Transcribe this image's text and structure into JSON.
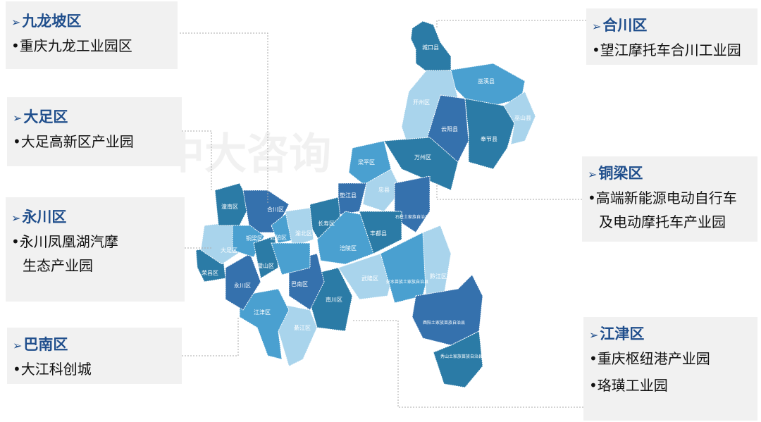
{
  "colors": {
    "dark": "#2b7ba6",
    "darker": "#3571ad",
    "mid": "#4aa0d0",
    "light": "#a9d4ec",
    "title": "#1f4e8c",
    "panel": "#f1f1f1"
  },
  "watermark": "中大咨询",
  "callouts": [
    {
      "title": "九龙坡区",
      "items": [
        "•重庆九龙工业园区"
      ]
    },
    {
      "title": "大足区",
      "items": [
        "•大足高新区产业园"
      ]
    },
    {
      "title": "永川区",
      "items": [
        "•永川凤凰湖汽摩",
        "生态产业园"
      ]
    },
    {
      "title": "巴南区",
      "items": [
        "•大江科创城"
      ]
    },
    {
      "title": "合川区",
      "items": [
        "•望江摩托车合川工业园"
      ]
    },
    {
      "title": "铜梁区",
      "items": [
        "•高端新能源电动自行车",
        "及电动摩托车产业园"
      ]
    },
    {
      "title": "江津区",
      "items": [
        "•重庆枢纽港产业园",
        "•珞璜工业园"
      ]
    }
  ],
  "map_labels": [
    "城口县",
    "巫溪县",
    "开州区",
    "云阳县",
    "奉节县",
    "巫山县",
    "万州区",
    "梁平区",
    "忠县",
    "石柱土家族自治县",
    "垫江县",
    "长寿区",
    "涪陵区",
    "丰都县",
    "武隆区",
    "彭水苗族土家族自治县",
    "黔江区",
    "酉阳土家族苗族自治县",
    "秀山土家族苗族自治县",
    "南川区",
    "綦江区",
    "巴南区",
    "江津区",
    "永川区",
    "荣昌区",
    "大足区",
    "潼南区",
    "合川区",
    "铜梁区",
    "璧山区",
    "北碚区",
    "渝北区"
  ]
}
